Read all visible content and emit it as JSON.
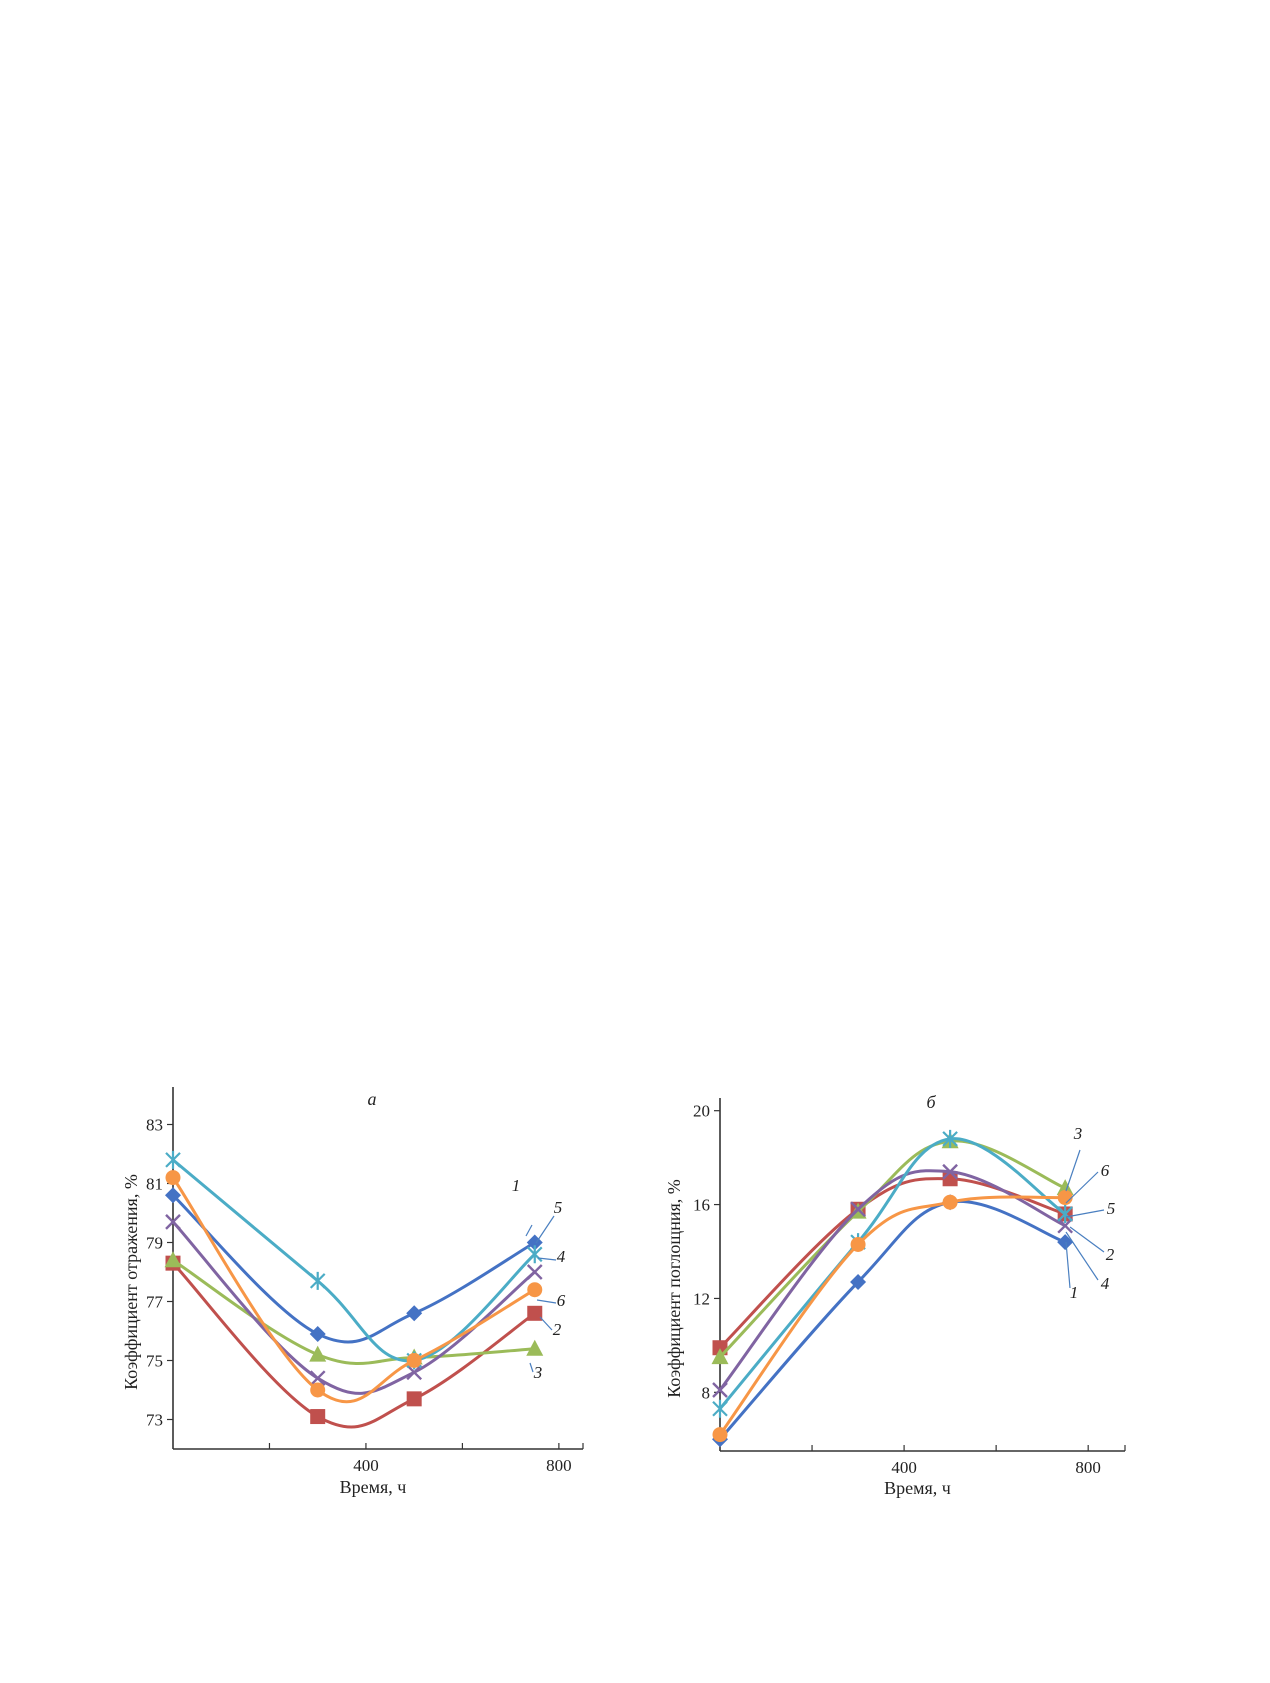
{
  "chart_data": [
    {
      "type": "line",
      "title": "а",
      "xlabel": "Время, ч",
      "ylabel": "Коэффициент отражения, %",
      "xlim": [
        0,
        850
      ],
      "ylim": [
        72,
        84
      ],
      "xticks": [
        400,
        800
      ],
      "xminor": [
        200,
        600
      ],
      "yticks": [
        73,
        75,
        77,
        79,
        81,
        83
      ],
      "x": [
        0,
        300,
        500,
        750
      ],
      "series": [
        {
          "name": "1",
          "color": "#4472c4",
          "marker": "diamond",
          "values": [
            80.6,
            75.9,
            76.6,
            79.0
          ]
        },
        {
          "name": "2",
          "color": "#c0504d",
          "marker": "square",
          "values": [
            78.3,
            73.1,
            73.7,
            76.6
          ]
        },
        {
          "name": "3",
          "color": "#9bbb59",
          "marker": "triangle",
          "values": [
            78.4,
            75.2,
            75.1,
            75.4
          ]
        },
        {
          "name": "4",
          "color": "#8064a2",
          "marker": "x",
          "values": [
            79.7,
            74.4,
            74.6,
            78.0
          ]
        },
        {
          "name": "5",
          "color": "#4bacc6",
          "marker": "star",
          "values": [
            81.8,
            77.7,
            75.0,
            78.6
          ]
        },
        {
          "name": "6",
          "color": "#f79646",
          "marker": "circle",
          "values": [
            81.2,
            74.0,
            75.0,
            77.4
          ]
        }
      ]
    },
    {
      "type": "line",
      "title": "б",
      "xlabel": "Время, ч",
      "ylabel": "Коэффициент поглощния, %",
      "xlim": [
        0,
        880
      ],
      "ylim": [
        5.5,
        20.2
      ],
      "xticks": [
        400,
        800
      ],
      "xminor": [
        200,
        600
      ],
      "yticks": [
        8,
        12,
        16,
        20
      ],
      "x": [
        0,
        300,
        500,
        750
      ],
      "series": [
        {
          "name": "1",
          "color": "#4472c4",
          "marker": "diamond",
          "values": [
            6.0,
            12.7,
            16.1,
            14.4
          ]
        },
        {
          "name": "2",
          "color": "#c0504d",
          "marker": "square",
          "values": [
            9.9,
            15.8,
            17.1,
            15.6
          ]
        },
        {
          "name": "3",
          "color": "#9bbb59",
          "marker": "triangle",
          "values": [
            9.5,
            15.7,
            18.7,
            16.7
          ]
        },
        {
          "name": "4",
          "color": "#8064a2",
          "marker": "x",
          "values": [
            8.1,
            15.8,
            17.4,
            15.1
          ]
        },
        {
          "name": "5",
          "color": "#4bacc6",
          "marker": "star",
          "values": [
            7.3,
            14.4,
            18.8,
            15.6
          ]
        },
        {
          "name": "6",
          "color": "#f79646",
          "marker": "circle",
          "values": [
            6.2,
            14.3,
            16.1,
            16.3
          ]
        }
      ]
    }
  ]
}
